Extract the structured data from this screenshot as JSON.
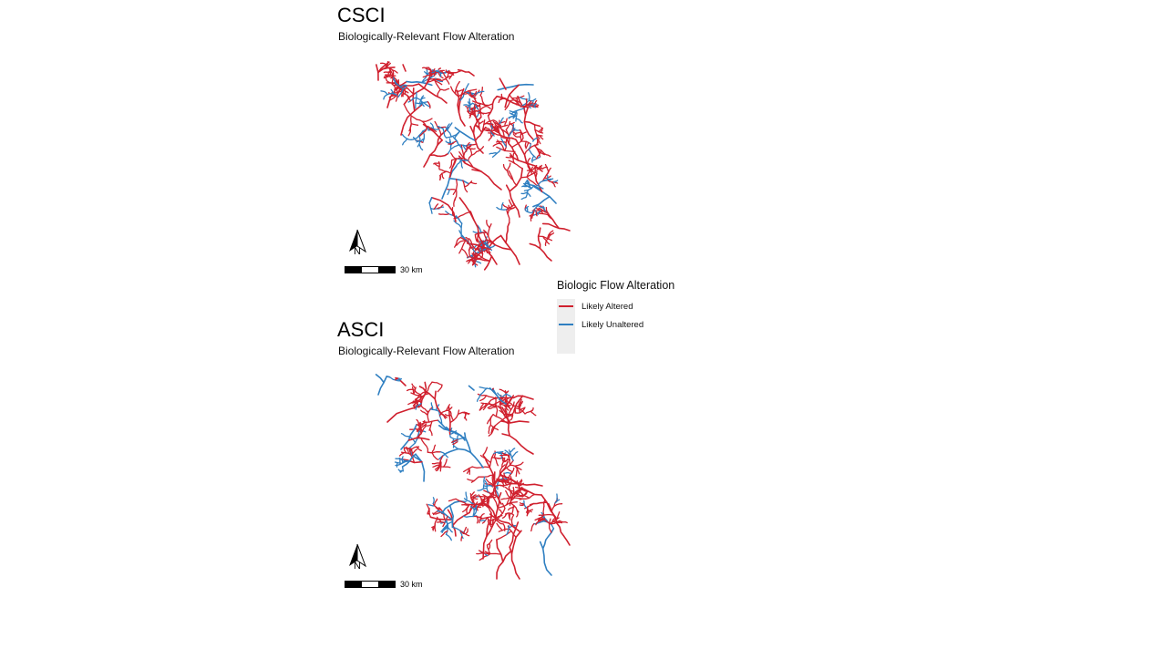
{
  "panels": [
    {
      "title": "CSCI",
      "subtitle": "Biologically-Relevant Flow Alteration",
      "north_label": "N",
      "scale_label": "30 km"
    },
    {
      "title": "ASCI",
      "subtitle": "Biologically-Relevant Flow Alteration",
      "north_label": "N",
      "scale_label": "30 km"
    }
  ],
  "legend": {
    "title": "Biologic Flow Alteration",
    "items": [
      {
        "label": "Likely Altered",
        "color": "#d0202e"
      },
      {
        "label": "Likely Unaltered",
        "color": "#2f7fc1"
      }
    ]
  },
  "colors": {
    "altered": "#d0202e",
    "unaltered": "#2f7fc1",
    "legend_bg": "#eeeeee"
  },
  "unaltered_share": [
    0.38,
    0.28
  ]
}
